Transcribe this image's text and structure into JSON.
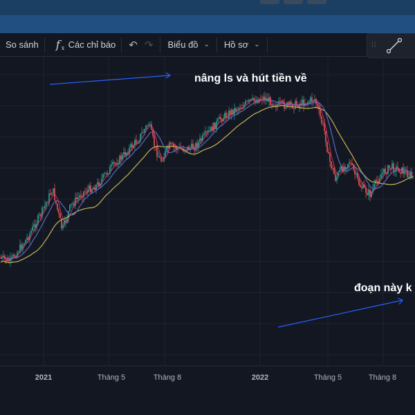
{
  "toolbar": {
    "compare_label": "So sánh",
    "fx_symbol": "f",
    "fx_sub": "x",
    "indicators_label": "Các chỉ báo",
    "chart_type_label": "Biểu đồ",
    "profile_label": "Hồ sơ"
  },
  "annotations": {
    "top_note": "nâng ls và hút tiền về",
    "bottom_note": "đoạn này k"
  },
  "time_axis": {
    "labels": [
      "2021",
      "Tháng 5",
      "Tháng 8",
      "2022",
      "Tháng 5",
      "Tháng 8"
    ]
  },
  "icons": {
    "undo": "undo-icon",
    "redo": "redo-icon",
    "chevron": "chevron-down-icon",
    "grip": "drag-handle-icon",
    "trendline": "trend-line-icon"
  },
  "colors": {
    "background": "#131722",
    "candle_up": "#26a69a",
    "candle_down": "#ef5350",
    "ma_fast": "#ec407a",
    "ma_mid": "#5c6bc0",
    "ma_slow": "#c9b458",
    "annotation_arrow": "#2962ff"
  }
}
